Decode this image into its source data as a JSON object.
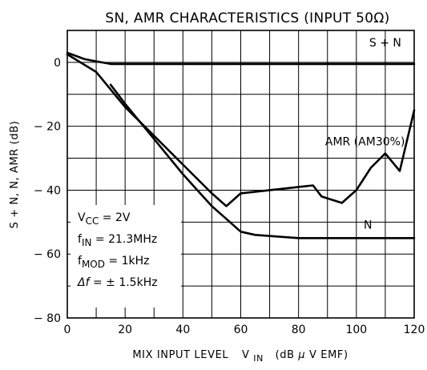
{
  "chart_data": {
    "type": "line",
    "title": "SN, AMR CHARACTERISTICS (INPUT 50Ω)",
    "xlabel": {
      "main": "MIX INPUT LEVEL",
      "symbol": "V",
      "symbol_sub": "IN",
      "unit_open": "(dB",
      "unit_mu": "μ",
      "unit_close": "V EMF)"
    },
    "ylabel": "S + N, N, AMR   (dB)",
    "xlim": [
      0,
      120
    ],
    "ylim": [
      -80,
      10
    ],
    "x_ticks": [
      0,
      20,
      40,
      60,
      80,
      100,
      120
    ],
    "y_ticks": [
      0,
      -20,
      -40,
      -60,
      -80
    ],
    "x_grid_step": 10,
    "y_grid_step": 10,
    "grid": true,
    "series": [
      {
        "name": "S + N",
        "points": [
          [
            0,
            3
          ],
          [
            6,
            1
          ],
          [
            15,
            -0.5
          ],
          [
            120,
            -0.5
          ]
        ]
      },
      {
        "name": "AMR (AM30%)",
        "points": [
          [
            0,
            2.5
          ],
          [
            10,
            -3
          ],
          [
            20,
            -14
          ],
          [
            30,
            -23
          ],
          [
            40,
            -32
          ],
          [
            50,
            -41
          ],
          [
            55,
            -45
          ],
          [
            60,
            -41
          ],
          [
            85,
            -38.5
          ],
          [
            88,
            -42
          ],
          [
            95,
            -44
          ],
          [
            100,
            -40
          ],
          [
            105,
            -33
          ],
          [
            110,
            -28.5
          ],
          [
            115,
            -34
          ],
          [
            120,
            -15
          ]
        ]
      },
      {
        "name": "N",
        "points": [
          [
            15,
            -7
          ],
          [
            20,
            -13
          ],
          [
            30,
            -24
          ],
          [
            40,
            -35
          ],
          [
            50,
            -45
          ],
          [
            55,
            -49
          ],
          [
            60,
            -53
          ],
          [
            65,
            -54
          ],
          [
            80,
            -55
          ],
          [
            120,
            -55
          ]
        ]
      }
    ],
    "series_labels": [
      {
        "text": "S + N",
        "x": 110,
        "y": 5
      },
      {
        "text": "AMR (AM30%)",
        "x": 103,
        "y": -26
      },
      {
        "text": "N",
        "x": 104,
        "y": -52
      }
    ],
    "conditions": [
      {
        "sym": "V",
        "sub": "CC",
        "val": " = 2V"
      },
      {
        "sym": "f",
        "sub": "IN",
        "val": " = 21.3MHz"
      },
      {
        "sym": "f",
        "sub": "MOD",
        "val": " = 1kHz"
      },
      {
        "sym": "Δf",
        "sub": "",
        "val": " = ± 1.5kHz"
      }
    ]
  }
}
